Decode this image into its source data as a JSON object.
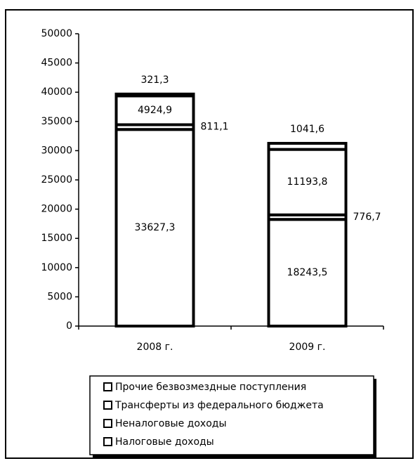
{
  "chart_data": {
    "type": "stacked_bar",
    "categories": [
      "2008 г.",
      "2009 г."
    ],
    "series": [
      {
        "name": "Налоговые доходы",
        "color": "#ffffff",
        "values": [
          33627.3,
          18243.5
        ],
        "value_labels": [
          "33627,3",
          "18243,5"
        ]
      },
      {
        "name": "Неналоговые доходы",
        "color": "#ffffff",
        "values": [
          811.1,
          776.7
        ],
        "value_labels": [
          "811,1",
          "776,7"
        ]
      },
      {
        "name": "Трансферты из федерального бюджета",
        "color": "#ffffff",
        "values": [
          4924.9,
          11193.8
        ],
        "value_labels": [
          "4924,9",
          "11193,8"
        ]
      },
      {
        "name": "Прочие безвозмездные поступления",
        "color": "#ffffff",
        "values": [
          321.3,
          1041.6
        ],
        "value_labels": [
          "321,3",
          "1041,6"
        ]
      }
    ],
    "ylim": [
      0,
      50000
    ],
    "yticks": [
      0,
      5000,
      10000,
      15000,
      20000,
      25000,
      30000,
      35000,
      40000,
      45000,
      50000
    ],
    "grid": false
  }
}
